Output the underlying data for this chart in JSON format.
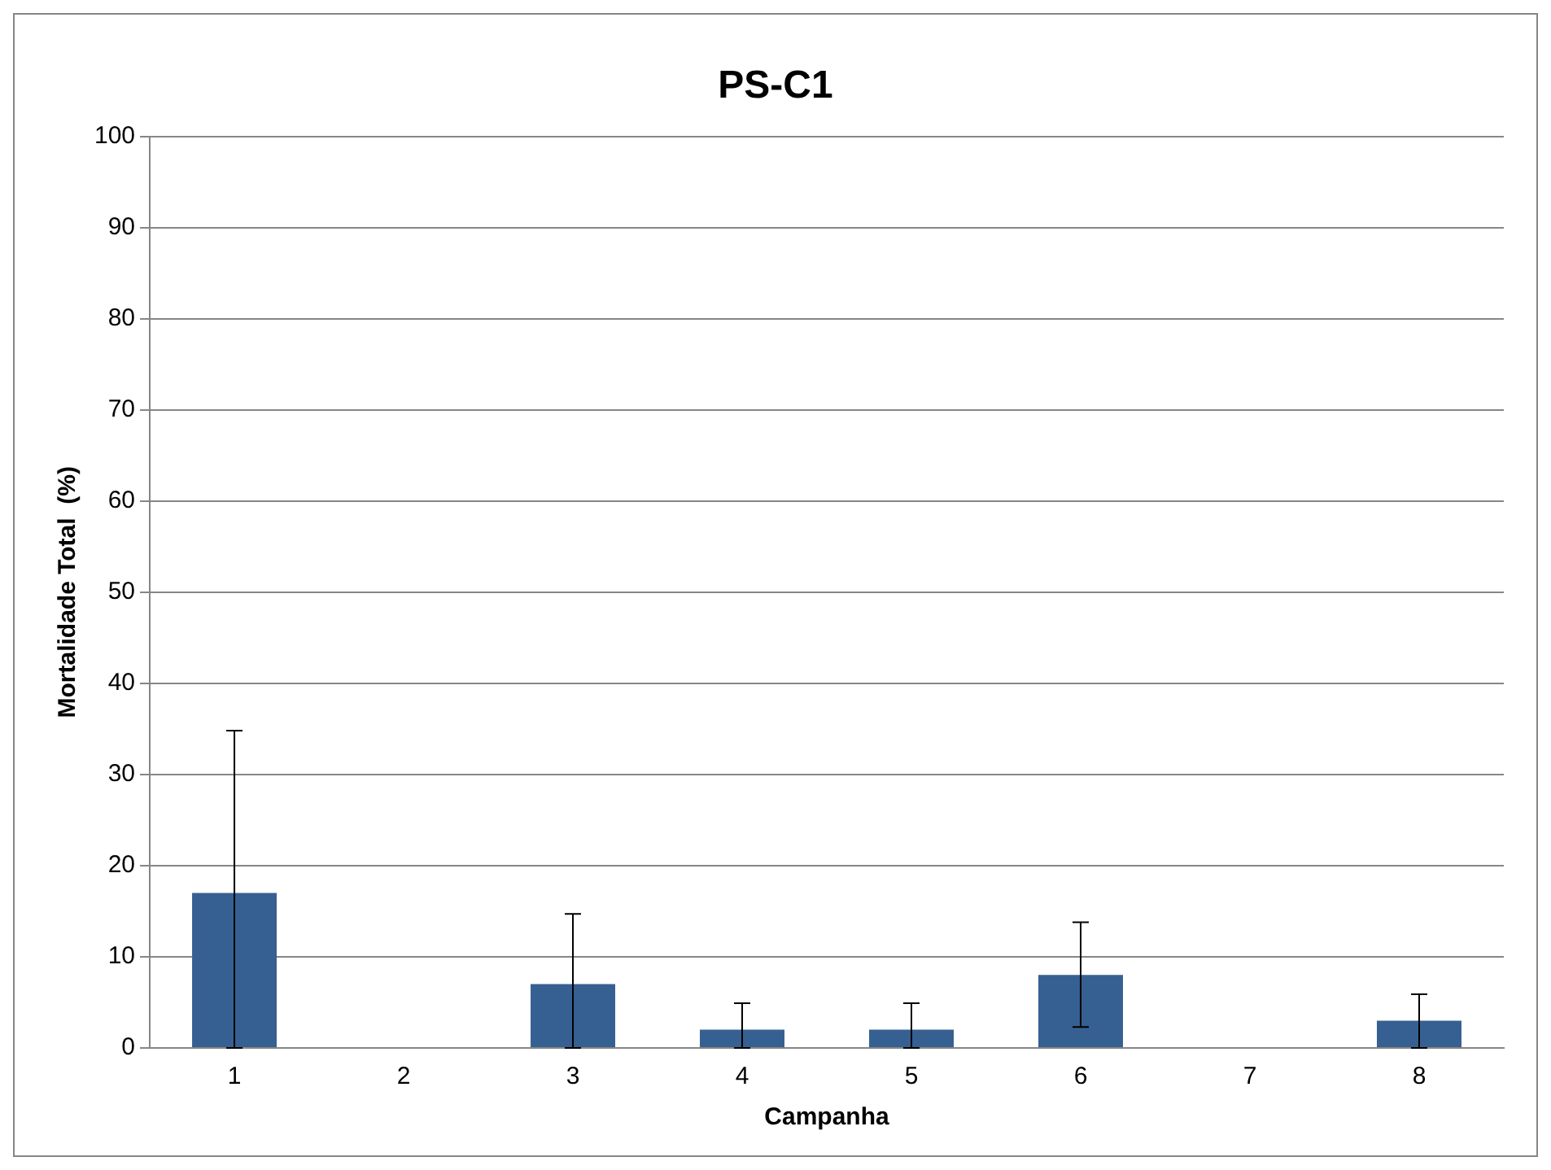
{
  "chart_data": {
    "type": "bar",
    "title": "PS-C1",
    "xlabel": "Campanha",
    "ylabel": "Mortalidade Total  (%)",
    "categories": [
      "1",
      "2",
      "3",
      "4",
      "5",
      "6",
      "7",
      "8"
    ],
    "values": [
      17,
      0,
      7,
      2,
      2,
      8,
      0,
      3
    ],
    "errors": [
      [
        0,
        34.8
      ],
      null,
      [
        0,
        14.7
      ],
      [
        0,
        4.9
      ],
      [
        0,
        4.9
      ],
      [
        2.3,
        13.8
      ],
      null,
      [
        0,
        5.9
      ]
    ],
    "color": "#376092",
    "ylim": [
      0,
      100
    ],
    "yticks": [
      0,
      10,
      20,
      30,
      40,
      50,
      60,
      70,
      80,
      90,
      100
    ],
    "grid": "y",
    "legend": false
  }
}
